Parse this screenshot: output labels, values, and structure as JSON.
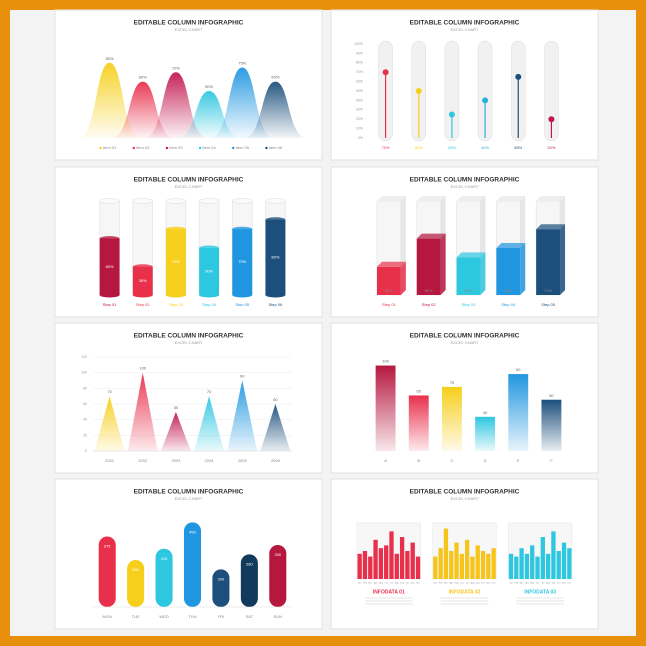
{
  "chart_data": [
    {
      "type": "area",
      "title": "EDITABLE COLUMN INFOGRAPHIC",
      "subtitle": "EXCEL CHART",
      "categories": [
        "Item 01",
        "Item 02",
        "Item 03",
        "Item 04",
        "Item 05",
        "Item 06"
      ],
      "values": [
        80,
        60,
        70,
        50,
        75,
        60
      ],
      "value_labels": [
        "80%",
        "60%",
        "70%",
        "50%",
        "75%",
        "60%"
      ],
      "colors": [
        "#f6cf1c",
        "#e8304b",
        "#c2184f",
        "#2ec7e0",
        "#2196e0",
        "#1c4f7c"
      ],
      "ylim": [
        0,
        100
      ]
    },
    {
      "type": "lollipop",
      "title": "EDITABLE COLUMN INFOGRAPHIC",
      "subtitle": "EXCEL CHART",
      "categories": [
        null,
        null,
        null,
        null,
        null,
        null
      ],
      "values": [
        70,
        50,
        25,
        40,
        65,
        20
      ],
      "value_labels": [
        "70%",
        "50%",
        "25%",
        "40%",
        "65%",
        "20%"
      ],
      "colors": [
        "#e8304b",
        "#f6cf1c",
        "#2ec7e0",
        "#2ab0e0",
        "#1c4f7c",
        "#c2184f"
      ],
      "ylim": [
        0,
        100
      ],
      "yticks": [
        {
          "value": 0,
          "label": "0%"
        },
        {
          "value": 10,
          "label": "10%"
        },
        {
          "value": 20,
          "label": "20%"
        },
        {
          "value": 30,
          "label": "30%"
        },
        {
          "value": 40,
          "label": "40%"
        },
        {
          "value": 50,
          "label": "50%"
        },
        {
          "value": 60,
          "label": "60%"
        },
        {
          "value": 70,
          "label": "70%"
        },
        {
          "value": 80,
          "label": "80%"
        },
        {
          "value": 90,
          "label": "90%"
        },
        {
          "value": 100,
          "label": "100%"
        }
      ]
    },
    {
      "type": "cylinder",
      "title": "EDITABLE COLUMN INFOGRAPHIC",
      "subtitle": "EXCEL CHART",
      "categories": [
        "Step 01",
        "Step 02",
        "Step 03",
        "Step 04",
        "Step 05",
        "Step 06"
      ],
      "values": [
        60,
        30,
        70,
        50,
        70,
        80
      ],
      "value_labels": [
        "60%",
        "30%",
        "70%",
        "50%",
        "70%",
        "80%"
      ],
      "colors": [
        "#b5173f",
        "#e8304b",
        "#f6cf1c",
        "#2ec7e0",
        "#2196e0",
        "#1c4f7c"
      ],
      "ylim": [
        0,
        100
      ]
    },
    {
      "type": "bar3d",
      "title": "EDITABLE COLUMN INFOGRAPHIC",
      "subtitle": "EXCEL CHART",
      "categories": [
        "Step 01",
        "Step 02",
        "Step 03",
        "Step 04",
        "Step 05"
      ],
      "values": [
        30,
        60,
        40,
        50,
        70
      ],
      "value_labels": [
        "30%",
        "60%",
        "40%",
        "50%",
        "70%"
      ],
      "colors": [
        "#e8304b",
        "#b5173f",
        "#2ec7e0",
        "#2196e0",
        "#1c4f7c"
      ],
      "ylim": [
        0,
        100
      ]
    },
    {
      "type": "triangle",
      "title": "EDITABLE COLUMN INFOGRAPHIC",
      "subtitle": "EXCEL CHART",
      "categories": [
        "2001",
        "2002",
        "2003",
        "2004",
        "2005",
        "2006"
      ],
      "values": [
        70,
        100,
        50,
        70,
        90,
        60
      ],
      "colors": [
        "#f6cf1c",
        "#e8304b",
        "#c2184f",
        "#2ec7e0",
        "#2196e0",
        "#1c4f7c"
      ],
      "ylim": [
        0,
        120
      ],
      "yticks": [
        0,
        20,
        40,
        60,
        80,
        100,
        120
      ],
      "grid": true
    },
    {
      "type": "bar",
      "title": "EDITABLE COLUMN INFOGRAPHIC",
      "subtitle": "EXCEL CHART",
      "categories": [
        "A",
        "B",
        "C",
        "D",
        "E",
        "F"
      ],
      "values": [
        100,
        65,
        75,
        40,
        90,
        60
      ],
      "colors": [
        "#b5173f",
        "#e8304b",
        "#f6cf1c",
        "#2ec7e0",
        "#2196e0",
        "#1c4f7c"
      ],
      "ylim": [
        0,
        110
      ]
    },
    {
      "type": "rounded-bar",
      "title": "EDITABLE COLUMN INFOGRAPHIC",
      "subtitle": "EXCEL CHART",
      "categories": [
        "MON",
        "TUE",
        "WED",
        "THU",
        "FRI",
        "SAT",
        "SUN"
      ],
      "values": [
        375,
        250,
        310,
        450,
        200,
        280,
        330
      ],
      "colors": [
        "#e8304b",
        "#f6cf1c",
        "#2ec7e0",
        "#2196e0",
        "#1c4f7c",
        "#123a5c",
        "#b5173f"
      ],
      "ylim": [
        0,
        500
      ]
    },
    {
      "type": "multiples",
      "title": "EDITABLE COLUMN INFOGRAPHIC",
      "subtitle": "EXCEL CHART",
      "categories": [
        "Jan",
        "Feb",
        "Mar",
        "Apr",
        "May",
        "Jun",
        "Jul",
        "Aug",
        "Sep",
        "Oct",
        "Nov",
        "Dec"
      ],
      "ylim": [
        0,
        100
      ],
      "series": [
        {
          "name": "INFODATA 01",
          "color": "#e8304b",
          "values": [
            45,
            50,
            40,
            70,
            55,
            60,
            85,
            45,
            75,
            50,
            65,
            40
          ]
        },
        {
          "name": "INFODATA 02",
          "color": "#f6c51c",
          "values": [
            40,
            55,
            90,
            50,
            65,
            45,
            70,
            40,
            60,
            50,
            45,
            55
          ]
        },
        {
          "name": "INFODATA 03",
          "color": "#2ec7e0",
          "values": [
            45,
            40,
            55,
            45,
            60,
            40,
            75,
            45,
            85,
            50,
            65,
            55
          ]
        }
      ]
    }
  ]
}
